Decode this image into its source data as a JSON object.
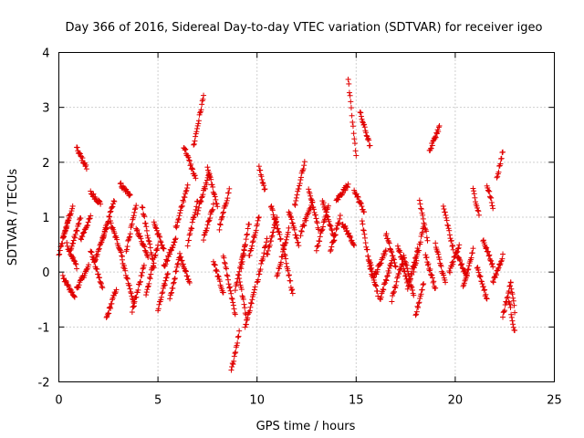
{
  "chart_data": {
    "type": "scatter",
    "title": "Day 366 of 2016, Sidereal Day-to-day VTEC variation (SDTVAR) for receiver igeo",
    "xlabel": "GPS time / hours",
    "ylabel": "SDTVAR / TECUs",
    "xlim": [
      0,
      25
    ],
    "ylim": [
      -2,
      4
    ],
    "xticks": [
      0,
      5,
      10,
      15,
      20,
      25
    ],
    "yticks": [
      -2,
      -1,
      0,
      1,
      2,
      3,
      4
    ],
    "xtick_labels": [
      "0",
      "5",
      "10",
      "15",
      "20",
      "25"
    ],
    "ytick_labels": [
      "-2",
      "-1",
      "0",
      "1",
      "2",
      "3",
      "4"
    ],
    "grid": true,
    "marker": "+",
    "color": "#e00000",
    "tracks": [
      {
        "t": [
          0.0,
          0.5
        ],
        "v": [
          0.3,
          1.0
        ]
      },
      {
        "t": [
          0.2,
          0.7
        ],
        "v": [
          0.6,
          1.2
        ]
      },
      {
        "t": [
          0.2,
          0.8
        ],
        "v": [
          -0.1,
          -0.45
        ]
      },
      {
        "t": [
          0.4,
          0.9
        ],
        "v": [
          0.5,
          0.1
        ]
      },
      {
        "t": [
          0.6,
          1.1
        ],
        "v": [
          0.4,
          1.0
        ]
      },
      {
        "t": [
          0.9,
          1.4
        ],
        "v": [
          2.25,
          1.9
        ]
      },
      {
        "t": [
          0.9,
          1.5
        ],
        "v": [
          -0.3,
          0.1
        ]
      },
      {
        "t": [
          1.1,
          1.6
        ],
        "v": [
          0.6,
          1.0
        ]
      },
      {
        "t": [
          1.6,
          2.1
        ],
        "v": [
          1.45,
          1.25
        ]
      },
      {
        "t": [
          1.6,
          2.2
        ],
        "v": [
          0.4,
          -0.3
        ]
      },
      {
        "t": [
          1.8,
          2.4
        ],
        "v": [
          0.2,
          0.8
        ]
      },
      {
        "t": [
          2.2,
          2.8
        ],
        "v": [
          0.6,
          1.3
        ]
      },
      {
        "t": [
          2.4,
          2.9
        ],
        "v": [
          -0.85,
          -0.3
        ]
      },
      {
        "t": [
          2.6,
          3.2
        ],
        "v": [
          0.9,
          0.3
        ]
      },
      {
        "t": [
          3.1,
          3.6
        ],
        "v": [
          1.6,
          1.4
        ]
      },
      {
        "t": [
          3.2,
          3.8
        ],
        "v": [
          0.2,
          -0.6
        ]
      },
      {
        "t": [
          3.4,
          3.9
        ],
        "v": [
          0.4,
          1.2
        ]
      },
      {
        "t": [
          3.7,
          4.3
        ],
        "v": [
          -0.7,
          0.1
        ]
      },
      {
        "t": [
          3.9,
          4.5
        ],
        "v": [
          0.8,
          0.3
        ]
      },
      {
        "t": [
          4.2,
          4.8
        ],
        "v": [
          1.2,
          0.1
        ]
      },
      {
        "t": [
          4.4,
          5.0
        ],
        "v": [
          -0.4,
          0.5
        ]
      },
      {
        "t": [
          4.8,
          5.3
        ],
        "v": [
          0.9,
          0.4
        ]
      },
      {
        "t": [
          5.0,
          5.5
        ],
        "v": [
          -0.7,
          0.0
        ]
      },
      {
        "t": [
          5.3,
          5.9
        ],
        "v": [
          0.1,
          0.6
        ]
      },
      {
        "t": [
          5.6,
          6.1
        ],
        "v": [
          -0.5,
          0.3
        ]
      },
      {
        "t": [
          5.9,
          6.5
        ],
        "v": [
          0.8,
          1.6
        ]
      },
      {
        "t": [
          6.1,
          6.6
        ],
        "v": [
          0.3,
          -0.2
        ]
      },
      {
        "t": [
          6.3,
          6.9
        ],
        "v": [
          2.3,
          1.7
        ]
      },
      {
        "t": [
          6.5,
          7.0
        ],
        "v": [
          0.5,
          1.3
        ]
      },
      {
        "t": [
          6.8,
          7.3
        ],
        "v": [
          2.3,
          3.2
        ]
      },
      {
        "t": [
          7.0,
          7.6
        ],
        "v": [
          1.1,
          1.8
        ]
      },
      {
        "t": [
          7.3,
          7.8
        ],
        "v": [
          0.6,
          1.2
        ]
      },
      {
        "t": [
          7.5,
          8.0
        ],
        "v": [
          1.9,
          1.2
        ]
      },
      {
        "t": [
          7.8,
          8.3
        ],
        "v": [
          0.2,
          -0.4
        ]
      },
      {
        "t": [
          8.1,
          8.6
        ],
        "v": [
          0.8,
          1.5
        ]
      },
      {
        "t": [
          8.3,
          8.9
        ],
        "v": [
          0.3,
          -0.8
        ]
      },
      {
        "t": [
          8.7,
          9.1
        ],
        "v": [
          -1.8,
          -1.1
        ]
      },
      {
        "t": [
          8.9,
          9.4
        ],
        "v": [
          -0.3,
          0.5
        ]
      },
      {
        "t": [
          9.1,
          9.5
        ],
        "v": [
          -0.1,
          -0.9
        ]
      },
      {
        "t": [
          9.2,
          9.6
        ],
        "v": [
          0.1,
          0.9
        ]
      },
      {
        "t": [
          9.4,
          9.9
        ],
        "v": [
          -1.0,
          -0.3
        ]
      },
      {
        "t": [
          9.6,
          10.1
        ],
        "v": [
          0.3,
          1.0
        ]
      },
      {
        "t": [
          10.0,
          10.5
        ],
        "v": [
          -0.2,
          0.6
        ]
      },
      {
        "t": [
          10.1,
          10.4
        ],
        "v": [
          1.9,
          1.5
        ]
      },
      {
        "t": [
          10.5,
          11.0
        ],
        "v": [
          0.3,
          1.0
        ]
      },
      {
        "t": [
          10.7,
          11.2
        ],
        "v": [
          1.2,
          0.6
        ]
      },
      {
        "t": [
          11.0,
          11.6
        ],
        "v": [
          -0.1,
          0.8
        ]
      },
      {
        "t": [
          11.3,
          11.8
        ],
        "v": [
          0.5,
          -0.4
        ]
      },
      {
        "t": [
          11.6,
          12.1
        ],
        "v": [
          1.1,
          0.5
        ]
      },
      {
        "t": [
          11.9,
          12.4
        ],
        "v": [
          1.2,
          2.0
        ]
      },
      {
        "t": [
          12.2,
          12.8
        ],
        "v": [
          0.7,
          1.3
        ]
      },
      {
        "t": [
          12.6,
          13.1
        ],
        "v": [
          1.5,
          0.8
        ]
      },
      {
        "t": [
          13.0,
          13.6
        ],
        "v": [
          0.4,
          1.2
        ]
      },
      {
        "t": [
          13.3,
          13.9
        ],
        "v": [
          1.3,
          0.6
        ]
      },
      {
        "t": [
          13.7,
          14.2
        ],
        "v": [
          0.4,
          1.0
        ]
      },
      {
        "t": [
          14.0,
          14.6
        ],
        "v": [
          1.3,
          1.6
        ]
      },
      {
        "t": [
          14.3,
          14.9
        ],
        "v": [
          0.9,
          0.5
        ]
      },
      {
        "t": [
          14.6,
          15.0
        ],
        "v": [
          3.5,
          2.1
        ]
      },
      {
        "t": [
          14.9,
          15.4
        ],
        "v": [
          1.5,
          1.1
        ]
      },
      {
        "t": [
          15.2,
          15.7
        ],
        "v": [
          2.9,
          2.3
        ]
      },
      {
        "t": [
          15.3,
          15.8
        ],
        "v": [
          0.9,
          -0.1
        ]
      },
      {
        "t": [
          15.6,
          16.1
        ],
        "v": [
          0.3,
          -0.4
        ]
      },
      {
        "t": [
          15.9,
          16.5
        ],
        "v": [
          -0.1,
          0.4
        ]
      },
      {
        "t": [
          16.2,
          16.8
        ],
        "v": [
          -0.5,
          0.2
        ]
      },
      {
        "t": [
          16.5,
          17.0
        ],
        "v": [
          0.7,
          0.1
        ]
      },
      {
        "t": [
          16.8,
          17.4
        ],
        "v": [
          -0.5,
          0.3
        ]
      },
      {
        "t": [
          17.1,
          17.6
        ],
        "v": [
          0.5,
          -0.2
        ]
      },
      {
        "t": [
          17.4,
          17.9
        ],
        "v": [
          0.3,
          -0.4
        ]
      },
      {
        "t": [
          17.6,
          18.1
        ],
        "v": [
          -0.3,
          0.4
        ]
      },
      {
        "t": [
          17.9,
          18.4
        ],
        "v": [
          0.0,
          0.8
        ]
      },
      {
        "t": [
          18.0,
          18.4
        ],
        "v": [
          -0.8,
          -0.2
        ]
      },
      {
        "t": [
          18.2,
          18.6
        ],
        "v": [
          1.3,
          0.6
        ]
      },
      {
        "t": [
          18.5,
          19.0
        ],
        "v": [
          0.3,
          -0.3
        ]
      },
      {
        "t": [
          18.7,
          19.2
        ],
        "v": [
          2.2,
          2.65
        ]
      },
      {
        "t": [
          19.0,
          19.5
        ],
        "v": [
          0.5,
          -0.2
        ]
      },
      {
        "t": [
          19.4,
          19.9
        ],
        "v": [
          1.2,
          0.4
        ]
      },
      {
        "t": [
          19.7,
          20.2
        ],
        "v": [
          0.0,
          0.5
        ]
      },
      {
        "t": [
          20.1,
          20.6
        ],
        "v": [
          0.3,
          -0.1
        ]
      },
      {
        "t": [
          20.4,
          20.9
        ],
        "v": [
          -0.3,
          0.4
        ]
      },
      {
        "t": [
          20.9,
          21.2
        ],
        "v": [
          1.5,
          1.05
        ]
      },
      {
        "t": [
          21.1,
          21.6
        ],
        "v": [
          0.1,
          -0.5
        ]
      },
      {
        "t": [
          21.4,
          21.9
        ],
        "v": [
          0.6,
          0.1
        ]
      },
      {
        "t": [
          21.6,
          21.9
        ],
        "v": [
          1.6,
          1.2
        ]
      },
      {
        "t": [
          21.9,
          22.4
        ],
        "v": [
          -0.2,
          0.3
        ]
      },
      {
        "t": [
          22.1,
          22.4
        ],
        "v": [
          1.7,
          2.2
        ]
      },
      {
        "t": [
          22.4,
          22.8
        ],
        "v": [
          -0.8,
          -0.2
        ]
      },
      {
        "t": [
          22.7,
          23.0
        ],
        "v": [
          -0.5,
          -1.1
        ]
      },
      {
        "t": [
          22.8,
          23.0
        ],
        "v": [
          -0.2,
          -0.7
        ]
      }
    ]
  }
}
